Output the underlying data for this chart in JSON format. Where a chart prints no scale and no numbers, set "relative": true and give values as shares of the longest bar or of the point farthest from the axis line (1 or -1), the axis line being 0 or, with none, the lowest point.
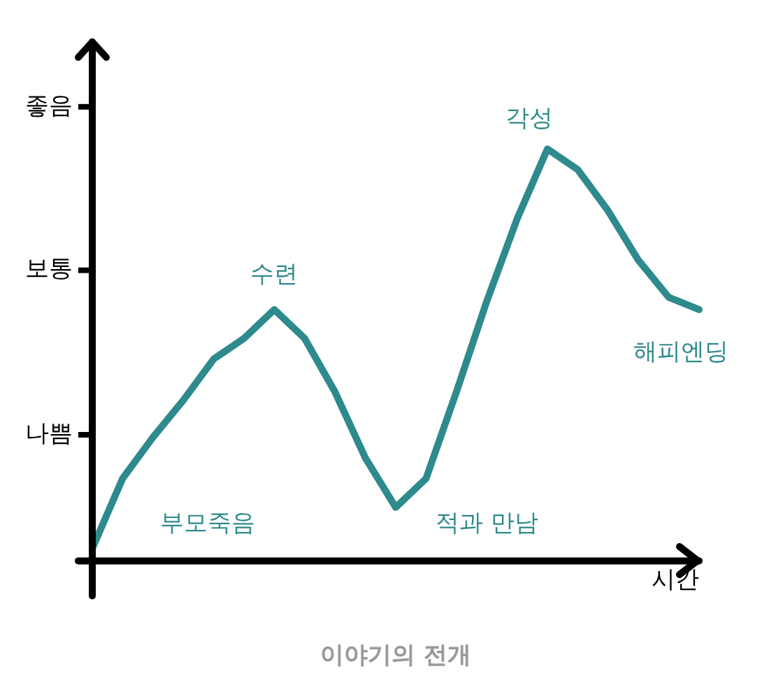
{
  "chart_data": {
    "type": "line",
    "title": "이야기의 전개",
    "xlabel": "시간",
    "relative": true,
    "categories": [
      null,
      null,
      null,
      null,
      null,
      null,
      null,
      null,
      null,
      null,
      null,
      null,
      null,
      null,
      null,
      null,
      null,
      null,
      null,
      null,
      null
    ],
    "series": [
      {
        "color": "#2e8a8c",
        "values": [
          0.03,
          0.2,
          0.3,
          0.39,
          0.49,
          0.54,
          0.61,
          0.54,
          0.41,
          0.25,
          0.13,
          0.2,
          0.41,
          0.63,
          0.83,
          1.0,
          0.95,
          0.85,
          0.73,
          0.64,
          0.61
        ]
      }
    ],
    "annotations": [
      "나쁨",
      "보통",
      "좋음",
      "부모죽음",
      "수련",
      "적과 만남",
      "각성",
      "해피엔딩"
    ],
    "grid": false,
    "legend": false,
    "marker": "none",
    "line_style": "solid"
  }
}
